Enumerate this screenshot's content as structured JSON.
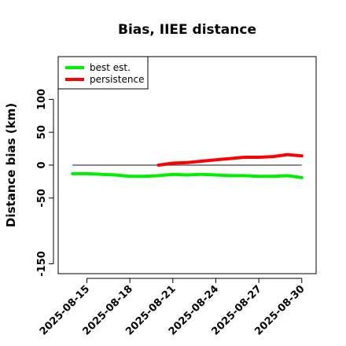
{
  "chart_data": {
    "type": "line",
    "title": "Bias, IIEE distance",
    "xlabel": "",
    "ylabel": "Distance bias (km)",
    "x_ticks": [
      "2025-08-15",
      "2025-08-18",
      "2025-08-21",
      "2025-08-24",
      "2025-08-27",
      "2025-08-30"
    ],
    "y_ticks": [
      -150,
      -50,
      0,
      50,
      100
    ],
    "xlim": [
      "2025-08-13",
      "2025-08-31"
    ],
    "ylim": [
      -165,
      165
    ],
    "legend_position": "top-left",
    "reference_line": 0,
    "series": [
      {
        "name": "best est.",
        "color": "#00ee00",
        "x": [
          "2025-08-14",
          "2025-08-15",
          "2025-08-16",
          "2025-08-17",
          "2025-08-18",
          "2025-08-19",
          "2025-08-20",
          "2025-08-21",
          "2025-08-22",
          "2025-08-23",
          "2025-08-24",
          "2025-08-25",
          "2025-08-26",
          "2025-08-27",
          "2025-08-28",
          "2025-08-29",
          "2025-08-30"
        ],
        "y": [
          -13,
          -13,
          -14,
          -15,
          -17,
          -17,
          -16,
          -14,
          -15,
          -14,
          -15,
          -16,
          -16,
          -17,
          -17,
          -16,
          -19
        ]
      },
      {
        "name": "persistence",
        "color": "#ff0000",
        "x": [
          "2025-08-20",
          "2025-08-21",
          "2025-08-22",
          "2025-08-23",
          "2025-08-24",
          "2025-08-25",
          "2025-08-26",
          "2025-08-27",
          "2025-08-28",
          "2025-08-29",
          "2025-08-30"
        ],
        "y": [
          0,
          3,
          4,
          6,
          8,
          10,
          12,
          12,
          13,
          16,
          14
        ]
      }
    ]
  }
}
